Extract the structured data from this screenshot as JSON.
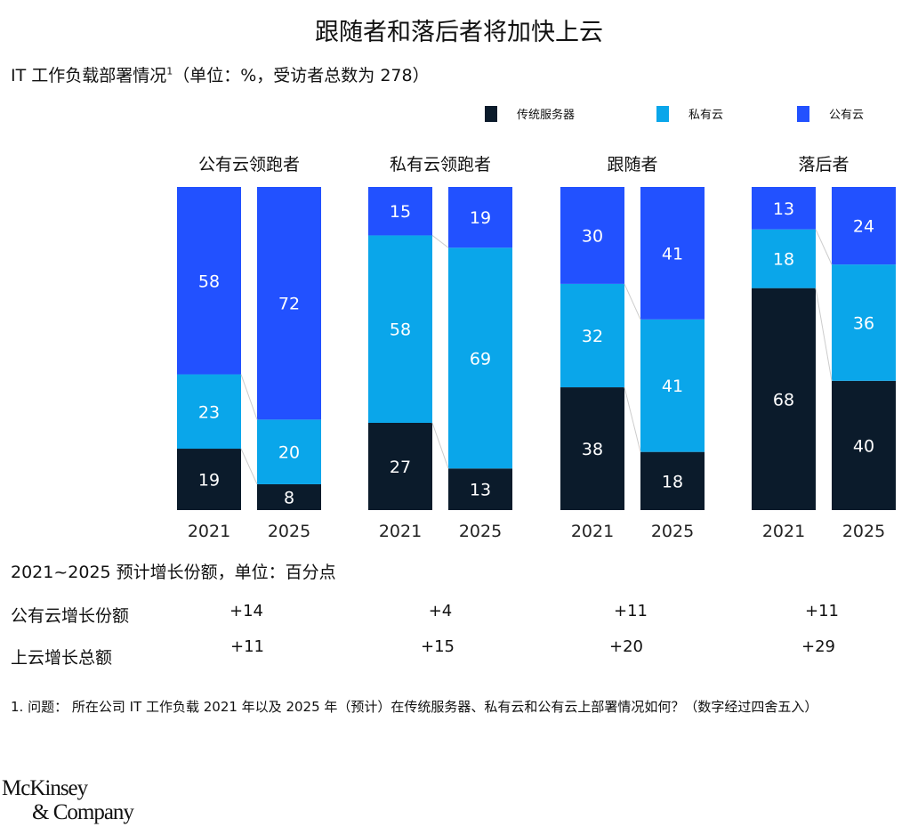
{
  "title": "跟随者和落后者将加快上云",
  "subtitle": "IT 工作负载部署情况",
  "subtitle_sup": "1",
  "subtitle_suffix": "（单位：%，受访者总数为 278）",
  "chart_data": {
    "type": "bar",
    "stacked": true,
    "ylim": [
      0,
      100
    ],
    "legend_position": "top-right",
    "series": [
      {
        "name": "传统服务器",
        "color": "#0b1b2b"
      },
      {
        "name": "私有云",
        "color": "#0aa6ea"
      },
      {
        "name": "公有云",
        "color": "#2251ff"
      }
    ],
    "groups": [
      {
        "name": "公有云领跑者",
        "bars": [
          {
            "year": "2021",
            "values": [
              19,
              23,
              58
            ]
          },
          {
            "year": "2025",
            "values": [
              8,
              20,
              72
            ]
          }
        ]
      },
      {
        "name": "私有云领跑者",
        "bars": [
          {
            "year": "2021",
            "values": [
              27,
              58,
              15
            ]
          },
          {
            "year": "2025",
            "values": [
              13,
              69,
              19
            ]
          }
        ]
      },
      {
        "name": "跟随者",
        "bars": [
          {
            "year": "2021",
            "values": [
              38,
              32,
              30
            ]
          },
          {
            "year": "2025",
            "values": [
              18,
              41,
              41
            ]
          }
        ]
      },
      {
        "name": "落后者",
        "bars": [
          {
            "year": "2021",
            "values": [
              68,
              18,
              13
            ]
          },
          {
            "year": "2025",
            "values": [
              40,
              36,
              24
            ]
          }
        ]
      }
    ]
  },
  "growth": {
    "heading": "2021~2025 预计增长份额，单位：百分点",
    "rows": [
      {
        "label": "公有云增长份额",
        "values": [
          "+14",
          "+4",
          "+11",
          "+11"
        ]
      },
      {
        "label": "上云增长总额",
        "values": [
          "+11",
          "+15",
          "+20",
          "+29"
        ]
      }
    ]
  },
  "footnote": "1. 问题：  所在公司 IT 工作负载 2021 年以及 2025 年（预计）在传统服务器、私有云和公有云上部署情况如何？（数字经过四舍五入）",
  "logo": {
    "line1": "McKinsey",
    "line2": "& Company"
  }
}
